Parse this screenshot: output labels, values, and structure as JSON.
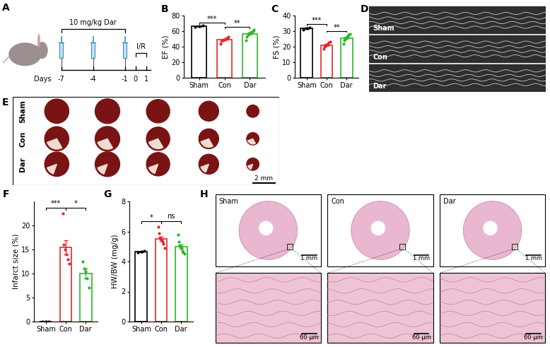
{
  "chart_data": [
    {
      "type": "bar",
      "title": "B",
      "ylabel": "EF (%)",
      "categories": [
        "Sham",
        "Con",
        "Dar"
      ],
      "values": [
        66.2,
        48.9,
        56.6
      ],
      "errors": [
        0.4,
        1.0,
        1.5
      ],
      "points": [
        [
          65.5,
          66.2,
          67.0
        ],
        [
          43.5,
          47,
          48,
          49,
          49.5,
          50.5,
          51,
          52.5
        ],
        [
          48.5,
          53,
          55.5,
          57,
          58,
          59,
          60,
          61.5
        ]
      ],
      "colors": [
        "#000000",
        "#e8262b",
        "#2bb52b"
      ],
      "ylim": [
        0,
        80
      ],
      "yticks": [
        0,
        20,
        40,
        60,
        80
      ],
      "comparisons": [
        {
          "from": "Sham",
          "to": "Con",
          "label": "***"
        },
        {
          "from": "Con",
          "to": "Dar",
          "label": "**"
        }
      ]
    },
    {
      "type": "bar",
      "title": "C",
      "ylabel": "FS (%)",
      "categories": [
        "Sham",
        "Con",
        "Dar"
      ],
      "values": [
        31.8,
        21.1,
        25.6
      ],
      "errors": [
        0.4,
        0.5,
        0.7
      ],
      "points": [
        [
          31,
          31.8,
          32.5
        ],
        [
          18.5,
          19.8,
          20.5,
          21,
          21.3,
          22,
          22.5,
          23.2
        ],
        [
          22,
          24,
          24.8,
          25.5,
          26.2,
          26.8,
          27.5,
          28.2
        ]
      ],
      "colors": [
        "#000000",
        "#e8262b",
        "#2bb52b"
      ],
      "ylim": [
        0,
        40
      ],
      "yticks": [
        0,
        10,
        20,
        30,
        40
      ],
      "comparisons": [
        {
          "from": "Sham",
          "to": "Con",
          "label": "***"
        },
        {
          "from": "Con",
          "to": "Dar",
          "label": "**"
        }
      ]
    },
    {
      "type": "bar",
      "title": "F",
      "ylabel": "Infarct size (%)",
      "categories": [
        "Sham",
        "Con",
        "Dar"
      ],
      "values": [
        0,
        15.4,
        10.0
      ],
      "errors": [
        0,
        1.5,
        1.0
      ],
      "points": [
        [
          0,
          0,
          0
        ],
        [
          22.5,
          16,
          15,
          14,
          13,
          12
        ],
        [
          12.5,
          11,
          10.5,
          9,
          7
        ]
      ],
      "colors": [
        "#000000",
        "#e8262b",
        "#2bb52b"
      ],
      "ylim": [
        0,
        25
      ],
      "yticks": [
        0,
        5,
        10,
        15,
        20
      ],
      "comparisons": [
        {
          "from": "Sham",
          "to": "Con",
          "label": "***"
        },
        {
          "from": "Con",
          "to": "Dar",
          "label": "*"
        }
      ]
    },
    {
      "type": "bar",
      "title": "G",
      "ylabel": "HW/BW (mg/g)",
      "categories": [
        "Sham",
        "Con",
        "Dar"
      ],
      "values": [
        4.65,
        5.5,
        5.0
      ],
      "errors": [
        0.03,
        0.15,
        0.15
      ],
      "points": [
        [
          4.6,
          4.65,
          4.7
        ],
        [
          6.3,
          5.9,
          5.6,
          5.5,
          5.4,
          5.3,
          5.2,
          4.9
        ],
        [
          5.8,
          5.3,
          5.1,
          5.0,
          4.9,
          4.7,
          4.6,
          4.5
        ]
      ],
      "colors": [
        "#000000",
        "#e8262b",
        "#2bb52b"
      ],
      "ylim": [
        0,
        8
      ],
      "yticks": [
        0,
        2,
        4,
        6,
        8
      ],
      "comparisons": [
        {
          "from": "Sham",
          "to": "Con",
          "label": "*"
        },
        {
          "from": "Con",
          "to": "Dar",
          "label": "ns"
        }
      ]
    }
  ],
  "schematic": {
    "title": "A",
    "dose": "10 mg/kg Dar",
    "procedure": "I/R",
    "axis_label": "Days",
    "ticks": [
      -7,
      -4,
      -1,
      0,
      1
    ],
    "injections": [
      -7,
      -4,
      -1
    ],
    "procedure_span": [
      0,
      1
    ]
  },
  "echo": {
    "title": "D",
    "groups": [
      "Sham",
      "Con",
      "Dar"
    ]
  },
  "sections": {
    "title": "E",
    "groups": [
      "Sham",
      "Con",
      "Dar"
    ],
    "scale_bar": "2 mm"
  },
  "histology": {
    "title": "H",
    "groups": [
      "Sham",
      "Con",
      "Dar"
    ],
    "scale_bar_overview": "1 mm",
    "scale_bar_detail": "60 μm"
  }
}
